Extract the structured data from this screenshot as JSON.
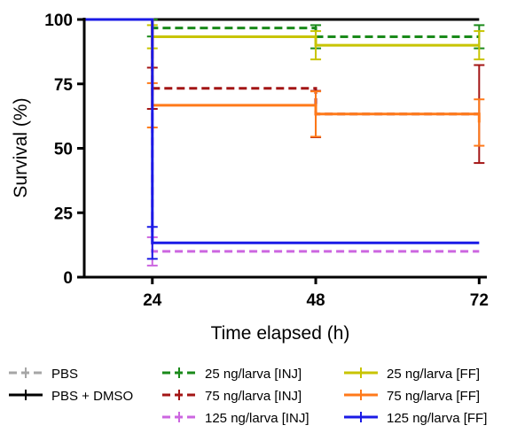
{
  "chart_data": {
    "type": "line",
    "step": true,
    "xlabel": "Time elapsed (h)",
    "ylabel": "Survival (%)",
    "x_ticks": [
      24,
      48,
      72
    ],
    "y_ticks": [
      0,
      25,
      50,
      75,
      100
    ],
    "xlim": [
      14,
      73
    ],
    "ylim": [
      0,
      100
    ],
    "grid": false,
    "legend_position": "bottom",
    "series": [
      {
        "name": "PBS",
        "color": "#a6a6a6",
        "dash": true,
        "x": [
          14,
          24,
          48,
          72
        ],
        "y": [
          100,
          100,
          100,
          100
        ],
        "error": [
          0,
          0,
          0,
          0
        ]
      },
      {
        "name": "PBS + DMSO",
        "color": "#000000",
        "dash": false,
        "x": [
          14,
          24,
          48,
          72
        ],
        "y": [
          100,
          100,
          100,
          100
        ],
        "error": [
          0,
          0,
          0,
          0
        ]
      },
      {
        "name": "25 ng/larva [INJ]",
        "color": "#1a8a1a",
        "dash": true,
        "x": [
          14,
          24,
          48,
          72
        ],
        "y": [
          100,
          96.7,
          93.3,
          93.3
        ],
        "error": [
          0,
          3.3,
          4.5,
          4.5
        ]
      },
      {
        "name": "75 ng/larva [INJ]",
        "color": "#a31515",
        "dash": true,
        "x": [
          14,
          24,
          48,
          72
        ],
        "y": [
          100,
          73.3,
          63.3,
          63.3
        ],
        "error": [
          0,
          8,
          9,
          19
        ]
      },
      {
        "name": "125 ng/larva [INJ]",
        "color": "#cc66e0",
        "dash": true,
        "x": [
          14,
          24,
          48,
          72
        ],
        "y": [
          100,
          10,
          10,
          10
        ],
        "error": [
          0,
          5.5,
          0,
          0
        ]
      },
      {
        "name": "25 ng/larva [FF]",
        "color": "#c8c400",
        "dash": false,
        "x": [
          14,
          24,
          48,
          72
        ],
        "y": [
          100,
          93.3,
          90,
          90
        ],
        "error": [
          0,
          4.5,
          5.5,
          5.5
        ]
      },
      {
        "name": "75 ng/larva [FF]",
        "color": "#ff7a1a",
        "dash": false,
        "x": [
          14,
          24,
          48,
          72
        ],
        "y": [
          100,
          66.7,
          63.3,
          60
        ],
        "error": [
          0,
          8.6,
          8.8,
          9
        ]
      },
      {
        "name": "125 ng/larva [FF]",
        "color": "#1a1ae6",
        "dash": false,
        "x": [
          14,
          24,
          48,
          72
        ],
        "y": [
          100,
          13.3,
          13.3,
          13.3
        ],
        "error": [
          0,
          6.2,
          0,
          0
        ]
      }
    ]
  }
}
